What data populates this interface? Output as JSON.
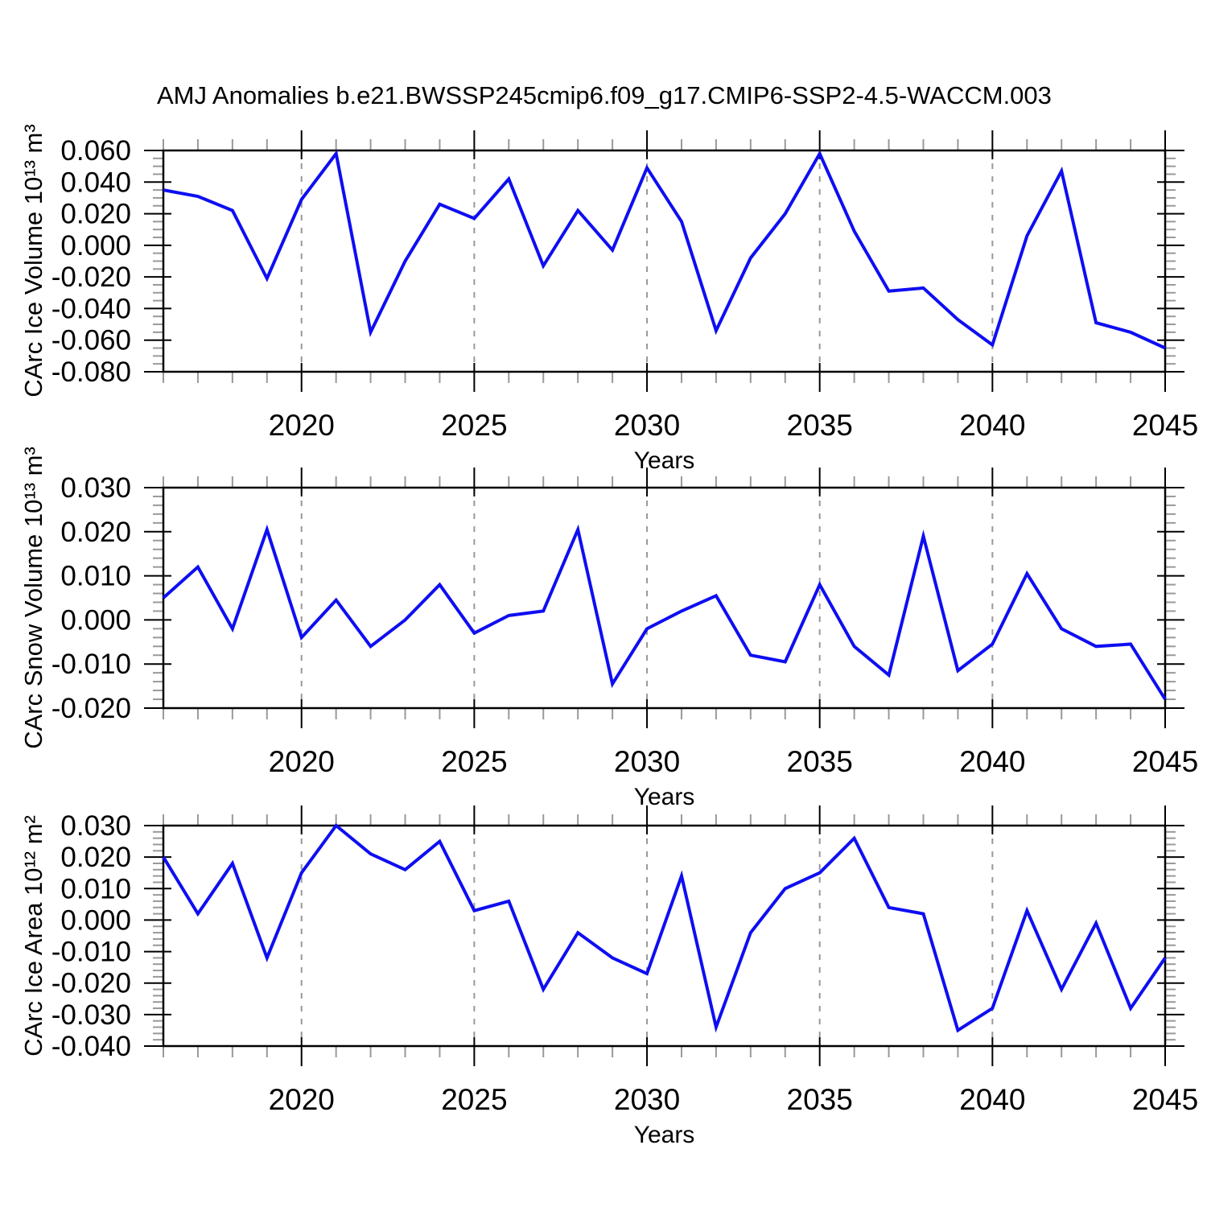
{
  "title": "AMJ Anomalies b.e21.BWSSP245cmip6.f09_g17.CMIP6-SSP2-4.5-WACCM.003",
  "line_color": "#0E0EF2",
  "axis_color": "#000000",
  "grid_color": "#999999",
  "minor_tick_color": "#999999",
  "chart_data": [
    {
      "type": "line",
      "name": "carc-ice-volume",
      "ylabel": "CArc Ice Volume 10¹³ m³",
      "xlabel": "Years",
      "x": [
        2016,
        2017,
        2018,
        2019,
        2020,
        2021,
        2022,
        2023,
        2024,
        2025,
        2026,
        2027,
        2028,
        2029,
        2030,
        2031,
        2032,
        2033,
        2034,
        2035,
        2036,
        2037,
        2038,
        2039,
        2040,
        2041,
        2042,
        2043,
        2044,
        2045
      ],
      "values": [
        0.035,
        0.031,
        0.022,
        -0.021,
        0.029,
        0.058,
        -0.055,
        -0.01,
        0.026,
        0.017,
        0.042,
        -0.013,
        0.022,
        -0.003,
        0.049,
        0.015,
        -0.054,
        -0.008,
        0.02,
        0.058,
        0.009,
        -0.029,
        -0.027,
        -0.047,
        -0.063,
        0.006,
        0.047,
        -0.049,
        -0.055,
        -0.065
      ],
      "ylim": [
        -0.08,
        0.06
      ],
      "yticks": [
        0.06,
        0.04,
        0.02,
        0.0,
        -0.02,
        -0.04,
        -0.06,
        -0.08
      ],
      "ytick_labels": [
        "0.060",
        "0.040",
        "0.020",
        "0.000",
        "-0.020",
        "-0.040",
        "-0.060",
        "-0.080"
      ],
      "y_minor_step": 0.005,
      "y_major_step": 0.02,
      "xlim": [
        2016,
        2045
      ],
      "x_major_ticks": [
        2020,
        2025,
        2030,
        2035,
        2040,
        2045
      ],
      "xtick_labels": [
        "2020",
        "2025",
        "2030",
        "2035",
        "2040",
        "2045"
      ],
      "x_minor_step": 1,
      "x_gridlines": [
        2020,
        2025,
        2030,
        2035,
        2040
      ],
      "grid": "vertical-dashed",
      "legend": "none"
    },
    {
      "type": "line",
      "name": "carc-snow-volume",
      "ylabel": "CArc Snow Volume 10¹³ m³",
      "xlabel": "Years",
      "x": [
        2016,
        2017,
        2018,
        2019,
        2020,
        2021,
        2022,
        2023,
        2024,
        2025,
        2026,
        2027,
        2028,
        2029,
        2030,
        2031,
        2032,
        2033,
        2034,
        2035,
        2036,
        2037,
        2038,
        2039,
        2040,
        2041,
        2042,
        2043,
        2044,
        2045
      ],
      "values": [
        0.005,
        0.012,
        -0.002,
        0.0205,
        -0.004,
        0.0045,
        -0.006,
        0.0,
        0.008,
        -0.003,
        0.001,
        0.002,
        0.0205,
        -0.0145,
        -0.002,
        0.002,
        0.0055,
        -0.008,
        -0.0095,
        0.008,
        -0.006,
        -0.0125,
        0.019,
        -0.0115,
        -0.0055,
        0.0105,
        -0.002,
        -0.006,
        -0.0055,
        -0.018
      ],
      "ylim": [
        -0.02,
        0.03
      ],
      "yticks": [
        0.03,
        0.02,
        0.01,
        0.0,
        -0.01,
        -0.02
      ],
      "ytick_labels": [
        "0.030",
        "0.020",
        "0.010",
        "0.000",
        "-0.010",
        "-0.020"
      ],
      "y_minor_step": 0.002,
      "y_major_step": 0.01,
      "xlim": [
        2016,
        2045
      ],
      "x_major_ticks": [
        2020,
        2025,
        2030,
        2035,
        2040,
        2045
      ],
      "xtick_labels": [
        "2020",
        "2025",
        "2030",
        "2035",
        "2040",
        "2045"
      ],
      "x_minor_step": 1,
      "x_gridlines": [
        2020,
        2025,
        2030,
        2035,
        2040
      ],
      "grid": "vertical-dashed",
      "legend": "none"
    },
    {
      "type": "line",
      "name": "carc-ice-area",
      "ylabel": "CArc Ice Area 10¹² m²",
      "xlabel": "Years",
      "x": [
        2016,
        2017,
        2018,
        2019,
        2020,
        2021,
        2022,
        2023,
        2024,
        2025,
        2026,
        2027,
        2028,
        2029,
        2030,
        2031,
        2032,
        2033,
        2034,
        2035,
        2036,
        2037,
        2038,
        2039,
        2040,
        2041,
        2042,
        2043,
        2044,
        2045
      ],
      "values": [
        0.02,
        0.002,
        0.018,
        -0.012,
        0.015,
        0.03,
        0.021,
        0.016,
        0.025,
        0.003,
        0.006,
        -0.022,
        -0.004,
        -0.012,
        -0.017,
        0.014,
        -0.034,
        -0.004,
        0.01,
        0.015,
        0.026,
        0.004,
        0.002,
        -0.035,
        -0.028,
        0.003,
        -0.022,
        -0.001,
        -0.028,
        -0.012
      ],
      "ylim": [
        -0.04,
        0.03
      ],
      "yticks": [
        0.03,
        0.02,
        0.01,
        0.0,
        -0.01,
        -0.02,
        -0.03,
        -0.04
      ],
      "ytick_labels": [
        "0.030",
        "0.020",
        "0.010",
        "0.000",
        "-0.010",
        "-0.020",
        "-0.030",
        "-0.040"
      ],
      "y_minor_step": 0.002,
      "y_major_step": 0.01,
      "xlim": [
        2016,
        2045
      ],
      "x_major_ticks": [
        2020,
        2025,
        2030,
        2035,
        2040,
        2045
      ],
      "xtick_labels": [
        "2020",
        "2025",
        "2030",
        "2035",
        "2040",
        "2045"
      ],
      "x_minor_step": 1,
      "x_gridlines": [
        2020,
        2025,
        2030,
        2035,
        2040
      ],
      "grid": "vertical-dashed",
      "legend": "none"
    }
  ]
}
